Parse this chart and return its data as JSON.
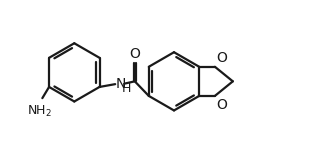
{
  "bg_color": "#ffffff",
  "line_color": "#1a1a1a",
  "line_width": 1.6,
  "font_size_label": 10,
  "fig_width": 3.11,
  "fig_height": 1.47,
  "xlim": [
    0.0,
    5.2
  ],
  "ylim": [
    1.4,
    4.0
  ]
}
